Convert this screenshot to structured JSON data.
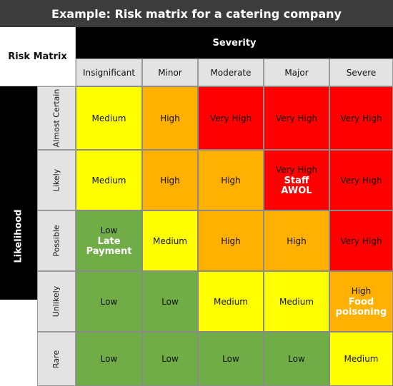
{
  "title": "Example: Risk matrix for a catering company",
  "corner_label": "Risk Matrix",
  "severity_label": "Severity",
  "likelihood_label": "Likelihood",
  "columns": [
    "Insignificant",
    "Minor",
    "Moderate",
    "Major",
    "Severe"
  ],
  "rows": [
    {
      "label": "Almost Certain",
      "cells": [
        {
          "level": "Medium",
          "color": "#ffff00"
        },
        {
          "level": "High",
          "color": "#ffb000"
        },
        {
          "level": "Very High",
          "color": "#ff0000"
        },
        {
          "level": "Very High",
          "color": "#ff0000"
        },
        {
          "level": "Very High",
          "color": "#ff0000"
        }
      ]
    },
    {
      "label": "Likely",
      "cells": [
        {
          "level": "Medium",
          "color": "#ffff00"
        },
        {
          "level": "High",
          "color": "#ffb000"
        },
        {
          "level": "High",
          "color": "#ffb000"
        },
        {
          "level": "Very High",
          "color": "#ff0000",
          "example": "Staff\nAWOL"
        },
        {
          "level": "Very High",
          "color": "#ff0000"
        }
      ]
    },
    {
      "label": "Possible",
      "cells": [
        {
          "level": "Low",
          "color": "#70ad47",
          "example": "Late\nPayment"
        },
        {
          "level": "Medium",
          "color": "#ffff00"
        },
        {
          "level": "High",
          "color": "#ffb000"
        },
        {
          "level": "High",
          "color": "#ffb000"
        },
        {
          "level": "Very High",
          "color": "#ff0000"
        }
      ]
    },
    {
      "label": "Unlikely",
      "cells": [
        {
          "level": "Low",
          "color": "#70ad47"
        },
        {
          "level": "Low",
          "color": "#70ad47"
        },
        {
          "level": "Medium",
          "color": "#ffff00"
        },
        {
          "level": "Medium",
          "color": "#ffff00"
        },
        {
          "level": "High",
          "color": "#ffb000",
          "example": "Food\npoisoning"
        }
      ]
    },
    {
      "label": "Rare",
      "cells": [
        {
          "level": "Low",
          "color": "#70ad47"
        },
        {
          "level": "Low",
          "color": "#70ad47"
        },
        {
          "level": "Low",
          "color": "#70ad47"
        },
        {
          "level": "Low",
          "color": "#70ad47"
        },
        {
          "level": "Medium",
          "color": "#ffff00"
        }
      ]
    }
  ]
}
